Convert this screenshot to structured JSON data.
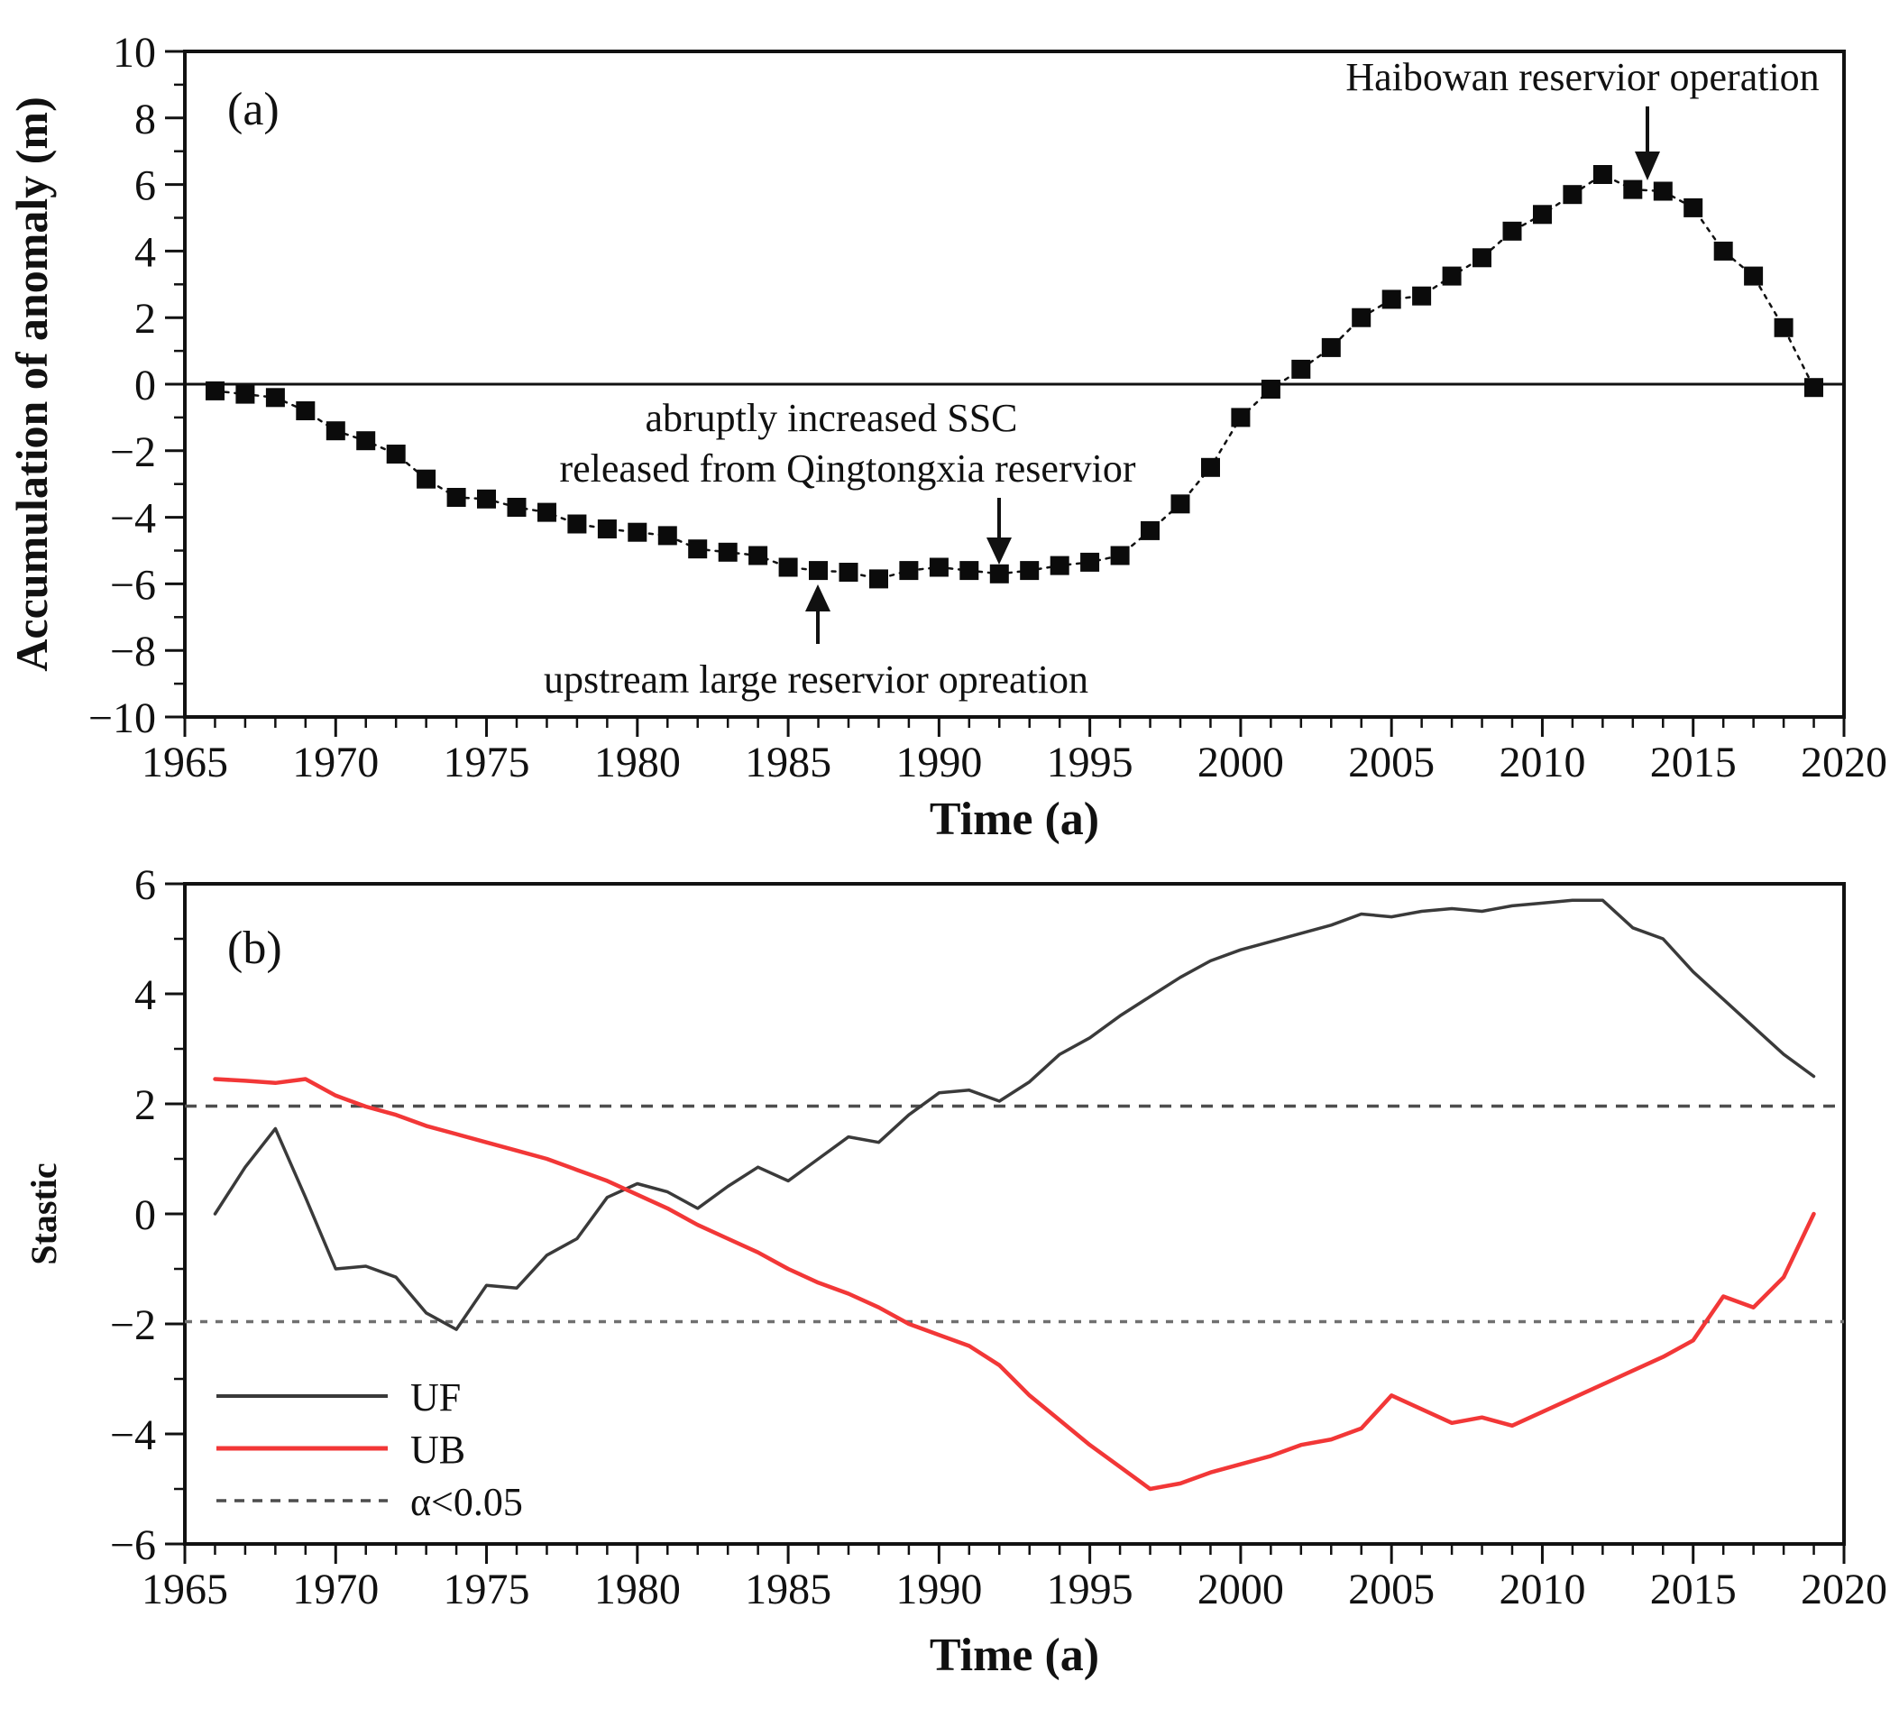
{
  "figure": {
    "background": "#ffffff",
    "accent_black": "#111111",
    "uf_color": "#3a3a3a",
    "ub_color": "#f23737",
    "sig_line_color": "#4d4d4d",
    "sig_line_color_lower": "#707070"
  },
  "chart_data": [
    {
      "type": "line",
      "panel_label": "(a)",
      "xlabel": "Time (a)",
      "ylabel": "Accumulation of anomaly (m)",
      "xlim": [
        1965,
        2020
      ],
      "ylim": [
        -10,
        10
      ],
      "x_major_ticks": [
        1965,
        1970,
        1975,
        1980,
        1985,
        1990,
        1995,
        2000,
        2005,
        2010,
        2015,
        2020
      ],
      "y_major_ticks": [
        -10,
        -8,
        -6,
        -4,
        -2,
        0,
        2,
        4,
        6,
        8,
        10
      ],
      "grid": false,
      "zero_line": true,
      "marker": "square",
      "line_style": "dotted",
      "series": [
        {
          "name": "accumulation-of-anomaly",
          "color": "#111111",
          "x": [
            1966,
            1967,
            1968,
            1969,
            1970,
            1971,
            1972,
            1973,
            1974,
            1975,
            1976,
            1977,
            1978,
            1979,
            1980,
            1981,
            1982,
            1983,
            1984,
            1985,
            1986,
            1987,
            1988,
            1989,
            1990,
            1991,
            1992,
            1993,
            1994,
            1995,
            1996,
            1997,
            1998,
            1999,
            2000,
            2001,
            2002,
            2003,
            2004,
            2005,
            2006,
            2007,
            2008,
            2009,
            2010,
            2011,
            2012,
            2013,
            2014,
            2015,
            2016,
            2017,
            2018,
            2019
          ],
          "y": [
            -0.2,
            -0.3,
            -0.4,
            -0.8,
            -1.4,
            -1.7,
            -2.1,
            -2.85,
            -3.4,
            -3.45,
            -3.7,
            -3.85,
            -4.2,
            -4.35,
            -4.45,
            -4.55,
            -4.95,
            -5.05,
            -5.15,
            -5.5,
            -5.6,
            -5.65,
            -5.85,
            -5.6,
            -5.5,
            -5.6,
            -5.7,
            -5.6,
            -5.45,
            -5.35,
            -5.15,
            -4.4,
            -3.6,
            -2.5,
            -1.0,
            -0.15,
            0.45,
            1.1,
            2.0,
            2.55,
            2.65,
            3.25,
            3.8,
            4.6,
            5.1,
            5.7,
            6.3,
            5.85,
            5.8,
            5.3,
            4.0,
            3.25,
            1.7,
            -0.1
          ]
        }
      ],
      "annotations": [
        {
          "text_lines": [
            "abruptly increased SSC",
            "released from Qingtongxia reservior"
          ],
          "arrow_year": 1992,
          "arrow_direction": "down"
        },
        {
          "text_lines": [
            "upstream large reservior opreation"
          ],
          "arrow_year": 1986,
          "arrow_direction": "up"
        },
        {
          "text_lines": [
            "Haibowan reservior operation"
          ],
          "arrow_year": 2013.5,
          "arrow_direction": "down"
        }
      ]
    },
    {
      "type": "line",
      "panel_label": "(b)",
      "xlabel": "Time (a)",
      "ylabel": "Stastic",
      "xlim": [
        1965,
        2020
      ],
      "ylim": [
        -6,
        6
      ],
      "x_major_ticks": [
        1965,
        1970,
        1975,
        1980,
        1985,
        1990,
        1995,
        2000,
        2005,
        2010,
        2015,
        2020
      ],
      "y_major_ticks": [
        -6,
        -4,
        -2,
        0,
        2,
        4,
        6
      ],
      "grid": false,
      "zero_line": false,
      "reference_lines": [
        1.96,
        -1.96
      ],
      "legend_position": "lower-left",
      "legend": [
        {
          "label": "UF",
          "style": "solid",
          "color": "#3a3a3a"
        },
        {
          "label": "UB",
          "style": "solid",
          "color": "#f23737"
        },
        {
          "label": "α<0.05",
          "style": "dashed",
          "color": "#4d4d4d"
        }
      ],
      "series": [
        {
          "name": "UF",
          "color": "#3a3a3a",
          "x": [
            1966,
            1967,
            1968,
            1969,
            1970,
            1971,
            1972,
            1973,
            1974,
            1975,
            1976,
            1977,
            1978,
            1979,
            1980,
            1981,
            1982,
            1983,
            1984,
            1985,
            1986,
            1987,
            1988,
            1989,
            1990,
            1991,
            1992,
            1993,
            1994,
            1995,
            1996,
            1997,
            1998,
            1999,
            2000,
            2001,
            2002,
            2003,
            2004,
            2005,
            2006,
            2007,
            2008,
            2009,
            2010,
            2011,
            2012,
            2013,
            2014,
            2015,
            2016,
            2017,
            2018,
            2019
          ],
          "y": [
            0.0,
            0.85,
            1.55,
            0.3,
            -1.0,
            -0.95,
            -1.15,
            -1.8,
            -2.1,
            -1.3,
            -1.35,
            -0.75,
            -0.45,
            0.3,
            0.55,
            0.4,
            0.1,
            0.5,
            0.85,
            0.6,
            1.0,
            1.4,
            1.3,
            1.8,
            2.2,
            2.25,
            2.05,
            2.4,
            2.9,
            3.2,
            3.6,
            3.95,
            4.3,
            4.6,
            4.8,
            4.95,
            5.1,
            5.25,
            5.45,
            5.4,
            5.5,
            5.55,
            5.5,
            5.6,
            5.65,
            5.7,
            5.7,
            5.2,
            5.0,
            4.4,
            3.9,
            3.4,
            2.9,
            2.5
          ]
        },
        {
          "name": "UB",
          "color": "#f23737",
          "x": [
            1966,
            1967,
            1968,
            1969,
            1970,
            1971,
            1972,
            1973,
            1974,
            1975,
            1976,
            1977,
            1978,
            1979,
            1980,
            1981,
            1982,
            1983,
            1984,
            1985,
            1986,
            1987,
            1988,
            1989,
            1990,
            1991,
            1992,
            1993,
            1994,
            1995,
            1996,
            1997,
            1998,
            1999,
            2000,
            2001,
            2002,
            2003,
            2004,
            2005,
            2006,
            2007,
            2008,
            2009,
            2010,
            2011,
            2012,
            2013,
            2014,
            2015,
            2016,
            2017,
            2018,
            2019
          ],
          "y": [
            2.45,
            2.42,
            2.38,
            2.45,
            2.15,
            1.95,
            1.8,
            1.6,
            1.45,
            1.3,
            1.15,
            1.0,
            0.8,
            0.6,
            0.35,
            0.1,
            -0.2,
            -0.45,
            -0.7,
            -1.0,
            -1.25,
            -1.45,
            -1.7,
            -2.0,
            -2.2,
            -2.4,
            -2.75,
            -3.3,
            -3.75,
            -4.2,
            -4.6,
            -5.0,
            -4.9,
            -4.7,
            -4.55,
            -4.4,
            -4.2,
            -4.1,
            -3.9,
            -3.3,
            -3.55,
            -3.8,
            -3.7,
            -3.85,
            -3.6,
            -3.35,
            -3.1,
            -2.85,
            -2.6,
            -2.3,
            -1.5,
            -1.7,
            -1.15,
            0.0
          ]
        }
      ]
    }
  ]
}
